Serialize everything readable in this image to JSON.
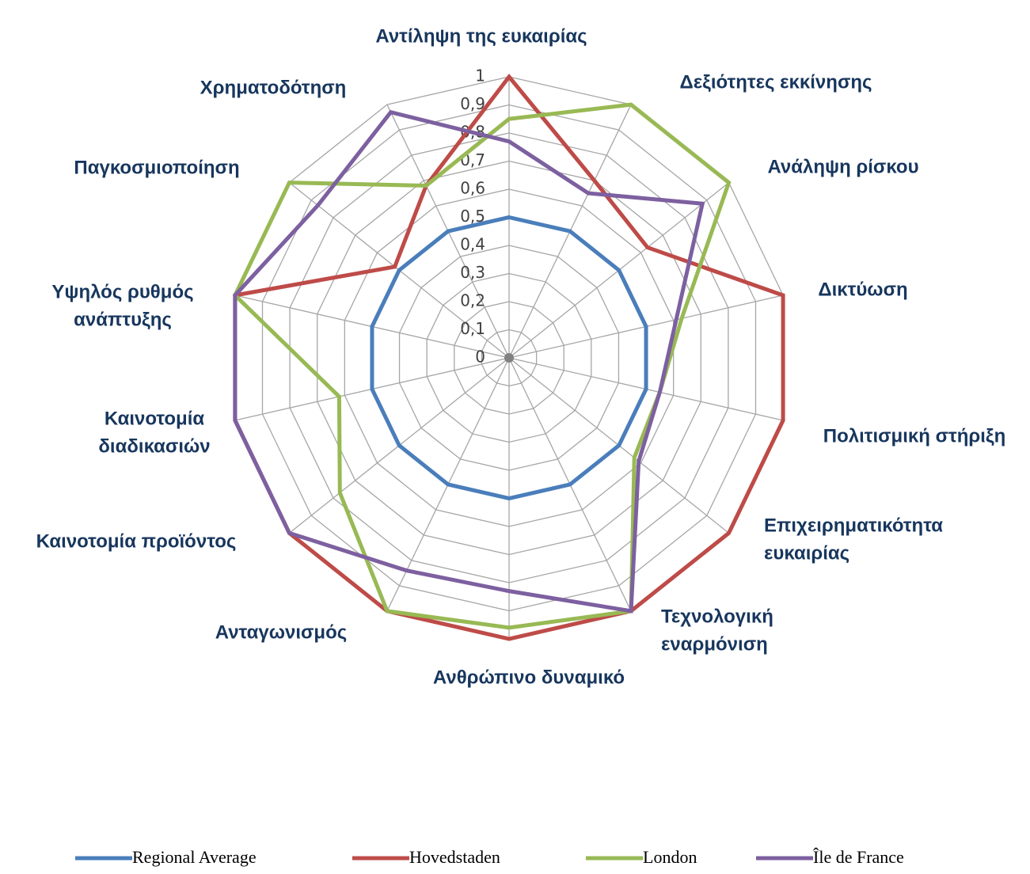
{
  "chart_data": {
    "type": "radar",
    "categories": [
      [
        "Αντίληψη της ευκαιρίας"
      ],
      [
        "Δεξιότητες εκκίνησης"
      ],
      [
        "Ανάληψη ρίσκου"
      ],
      [
        "Δικτύωση"
      ],
      [
        "Πολιτισμική στήριξη"
      ],
      [
        "Επιχειρηματικότητα",
        "ευκαιρίας"
      ],
      [
        "Τεχνολογική",
        "εναρμόνιση"
      ],
      [
        "Ανθρώπινο δυναμικό"
      ],
      [
        "Ανταγωνισμός"
      ],
      [
        "Καινοτομία προϊόντος"
      ],
      [
        "Καινοτομία",
        "διαδικασιών"
      ],
      [
        "Υψηλός ρυθμός",
        "ανάπτυξης"
      ],
      [
        "Παγκοσμιοποίηση"
      ],
      [
        "Χρηματοδότηση"
      ]
    ],
    "ylim": [
      0,
      1
    ],
    "yticks": [
      0,
      {
        "value": 0.1,
        "label": "0,1"
      },
      {
        "value": 0.2,
        "label": "0,2"
      },
      {
        "value": 0.3,
        "label": "0,3"
      },
      {
        "value": 0.4,
        "label": "0,4"
      },
      {
        "value": 0.5,
        "label": "0,5"
      },
      {
        "value": 0.6,
        "label": "0,6"
      },
      {
        "value": 0.7,
        "label": "0,7"
      },
      {
        "value": 0.8,
        "label": "0,8"
      },
      {
        "value": 0.9,
        "label": "0,9"
      },
      1
    ],
    "grid": true,
    "legend": "bottom",
    "series": [
      {
        "name": "Regional Average",
        "color": "#4a7ebb",
        "values": [
          0.5,
          0.5,
          0.5,
          0.5,
          0.5,
          0.5,
          0.5,
          0.5,
          0.5,
          0.5,
          0.5,
          0.5,
          0.5,
          0.5
        ]
      },
      {
        "name": "Hovedstaden",
        "color": "#be4b48",
        "values": [
          1,
          0.7,
          0.63,
          1,
          1,
          1,
          1,
          1,
          1,
          1,
          1,
          1,
          0.52,
          0.68
        ]
      },
      {
        "name": "London",
        "color": "#98b954",
        "values": [
          0.85,
          1,
          1,
          0.63,
          0.55,
          0.57,
          1,
          0.96,
          1,
          0.77,
          0.62,
          1,
          1,
          0.68
        ]
      },
      {
        "name": "Île de France",
        "color": "#7d60a0",
        "values": [
          0.77,
          0.65,
          0.88,
          0.61,
          0.55,
          0.59,
          1,
          0.83,
          0.84,
          1,
          1,
          1,
          0.87,
          0.97
        ]
      }
    ]
  }
}
